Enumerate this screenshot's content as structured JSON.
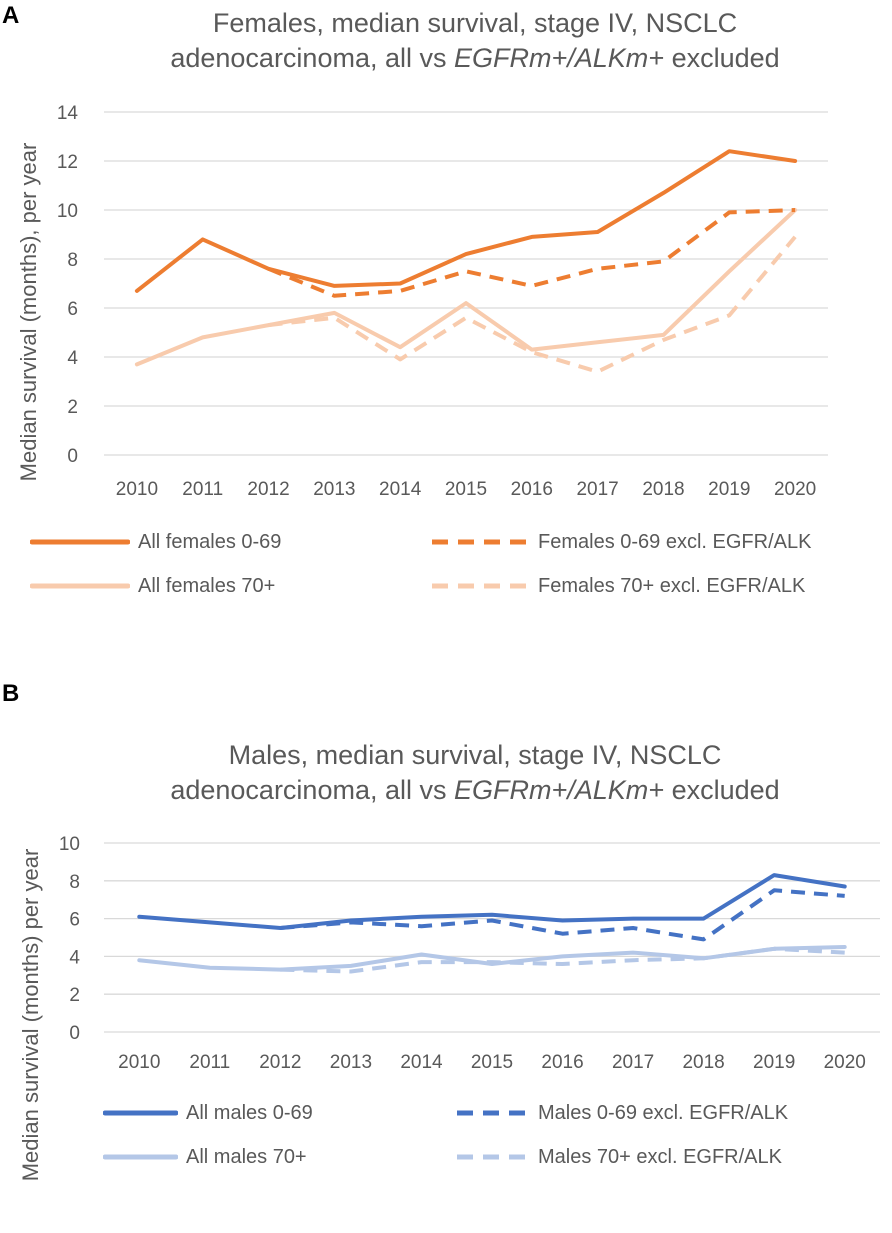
{
  "chart_data": [
    {
      "panel": "A",
      "type": "line",
      "title_line1": "Females, median survival, stage IV, NSCLC",
      "title_line2_pre": "adenocarcinoma, all vs ",
      "title_line2_italic": "EGFRm+/ALKm+",
      "title_line2_post": " excluded",
      "ylabel": "Median survival (months), per year",
      "xlabel": "",
      "ylim": [
        0,
        14
      ],
      "yticks": [
        "0",
        "2",
        "4",
        "6",
        "8",
        "10",
        "12",
        "14"
      ],
      "categories": [
        "2010",
        "2011",
        "2012",
        "2013",
        "2014",
        "2015",
        "2016",
        "2017",
        "2018",
        "2019",
        "2020"
      ],
      "grid": true,
      "legend_position": "bottom",
      "series": [
        {
          "name": "All females 0-69",
          "color": "#ED7D31",
          "dash": "solid",
          "values": [
            6.7,
            8.8,
            7.6,
            6.9,
            7.0,
            8.2,
            8.9,
            9.1,
            10.7,
            12.4,
            12.0
          ]
        },
        {
          "name": "Females 0-69 excl. EGFR/ALK",
          "color": "#ED7D31",
          "dash": "dashed",
          "values": [
            null,
            null,
            7.6,
            6.5,
            6.7,
            7.5,
            6.9,
            7.6,
            7.9,
            9.9,
            10.0
          ]
        },
        {
          "name": "All females 70+",
          "color": "#F8CBAD",
          "dash": "solid",
          "values": [
            3.7,
            4.8,
            5.3,
            5.8,
            4.4,
            6.2,
            4.3,
            4.6,
            4.9,
            7.5,
            10.0
          ]
        },
        {
          "name": "Females 70+ excl. EGFR/ALK",
          "color": "#F8CBAD",
          "dash": "dashed",
          "values": [
            null,
            null,
            5.3,
            5.6,
            3.9,
            5.6,
            4.2,
            3.4,
            4.7,
            5.7,
            8.9
          ]
        }
      ]
    },
    {
      "panel": "B",
      "type": "line",
      "title_line1": "Males, median survival, stage IV, NSCLC",
      "title_line2_pre": "adenocarcinoma, all vs ",
      "title_line2_italic": "EGFRm+/ALKm+",
      "title_line2_post": " excluded",
      "ylabel": "Median survival (months) per year",
      "xlabel": "",
      "ylim": [
        0,
        10
      ],
      "yticks": [
        "0",
        "2",
        "4",
        "6",
        "8",
        "10"
      ],
      "categories": [
        "2010",
        "2011",
        "2012",
        "2013",
        "2014",
        "2015",
        "2016",
        "2017",
        "2018",
        "2019",
        "2020"
      ],
      "grid": true,
      "legend_position": "bottom",
      "series": [
        {
          "name": "All males 0-69",
          "color": "#4472C4",
          "dash": "solid",
          "values": [
            6.1,
            5.8,
            5.5,
            5.9,
            6.1,
            6.2,
            5.9,
            6.0,
            6.0,
            8.3,
            7.7
          ]
        },
        {
          "name": "Males 0-69 excl. EGFR/ALK",
          "color": "#4472C4",
          "dash": "dashed",
          "values": [
            null,
            null,
            5.5,
            5.8,
            5.6,
            5.9,
            5.2,
            5.5,
            4.9,
            7.5,
            7.2
          ]
        },
        {
          "name": "All males 70+",
          "color": "#B4C7E7",
          "dash": "solid",
          "values": [
            3.8,
            3.4,
            3.3,
            3.5,
            4.1,
            3.6,
            4.0,
            4.2,
            3.9,
            4.4,
            4.5
          ]
        },
        {
          "name": "Males 70+ excl. EGFR/ALK",
          "color": "#B4C7E7",
          "dash": "dashed",
          "values": [
            null,
            null,
            3.3,
            3.2,
            3.7,
            3.7,
            3.6,
            3.8,
            3.9,
            4.4,
            4.2
          ]
        }
      ]
    }
  ]
}
